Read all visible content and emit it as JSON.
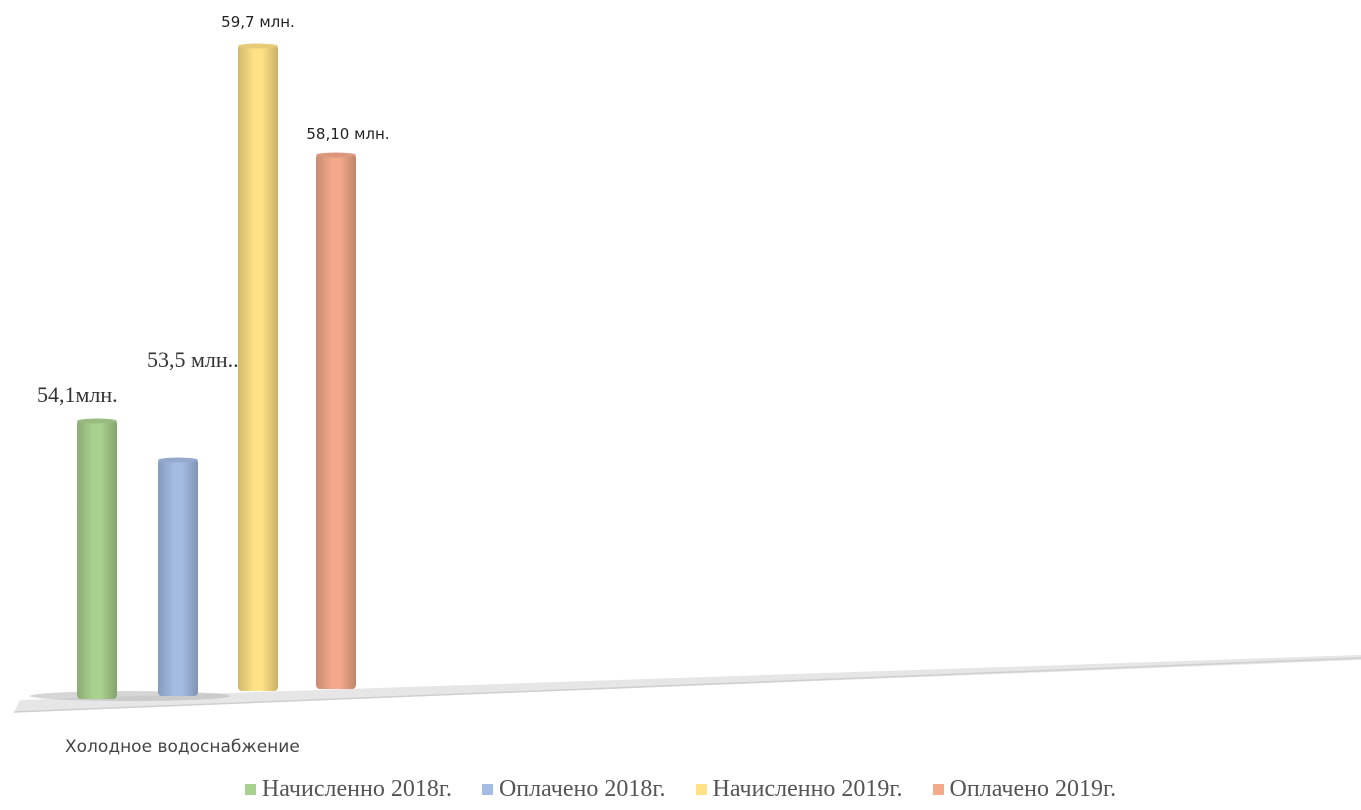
{
  "chart_data": {
    "type": "bar",
    "categories": [
      "Холодное водоснабжение"
    ],
    "series": [
      {
        "name": "Начисленно 2018г.",
        "values": [
          54.1
        ],
        "label": "54,1млн.",
        "color": "#a9d18e"
      },
      {
        "name": "Оплачено 2018г.",
        "values": [
          53.5
        ],
        "label": "53,5  млн..",
        "color": "#a4bce4"
      },
      {
        "name": "Начисленно 2019г.",
        "values": [
          59.7
        ],
        "label": "59,7 млн.",
        "color": "#ffe285"
      },
      {
        "name": "Оплачено 2019г.",
        "values": [
          58.1
        ],
        "label": "58,10 млн.",
        "color": "#f4a98a"
      }
    ],
    "grid": false,
    "legend_position": "bottom"
  }
}
